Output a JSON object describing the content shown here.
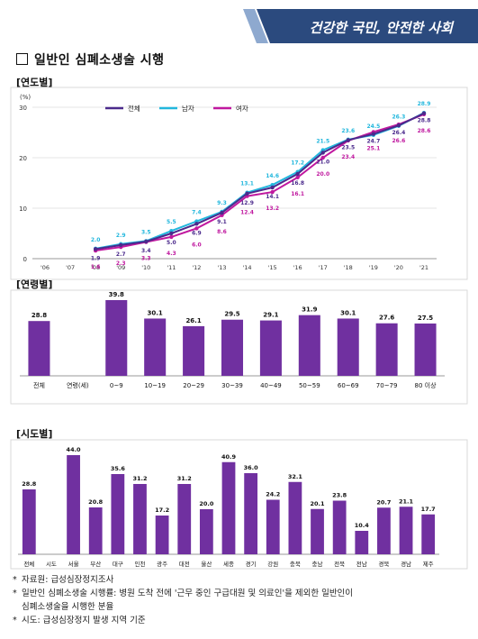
{
  "banner": {
    "slogan": "건강한 국민, 안전한 사회"
  },
  "title": "일반인 심폐소생술 시행",
  "sections": {
    "year": "[연도별]",
    "age": "[연령별]",
    "region": "[시도별]"
  },
  "chart_data": [
    {
      "type": "line",
      "ylabel": "(%)",
      "ylim": [
        0,
        30
      ],
      "yticks": [
        "0",
        "10",
        "20",
        "30"
      ],
      "x": [
        "'06",
        "'07",
        "'08",
        "'09",
        "'10",
        "'11",
        "'12",
        "'13",
        "'14",
        "'15",
        "'16",
        "'17",
        "'18",
        "'19",
        "'20",
        "'21"
      ],
      "legend_position": "top",
      "grid": true,
      "series": [
        {
          "name": "전체",
          "color": "#4b2a8c",
          "values": [
            null,
            null,
            1.9,
            2.7,
            3.4,
            5.0,
            6.9,
            9.1,
            12.9,
            14.1,
            16.8,
            21.0,
            23.5,
            24.7,
            26.4,
            28.8
          ],
          "labels": [
            null,
            null,
            "1.9",
            "2.7",
            "3.4",
            "5.0",
            "6.9",
            "9.1",
            "12.9",
            "14.1",
            "16.8",
            "21.0",
            "23.5",
            "24.7",
            "26.4",
            "28.8"
          ]
        },
        {
          "name": "남자",
          "color": "#22b7dd",
          "values": [
            null,
            null,
            2.0,
            2.9,
            3.5,
            5.5,
            7.4,
            9.3,
            13.1,
            14.6,
            17.2,
            21.5,
            23.6,
            24.5,
            26.3,
            28.9
          ],
          "labels": [
            null,
            null,
            "2.0",
            "2.9",
            "3.5",
            "5.5",
            "7.4",
            "9.3",
            "13.1",
            "14.6",
            "17.2",
            "21.5",
            "23.6",
            "24.5",
            "26.3",
            "28.9"
          ]
        },
        {
          "name": "여자",
          "color": "#c0189f",
          "values": [
            null,
            null,
            1.6,
            2.3,
            3.3,
            4.3,
            6.0,
            8.6,
            12.4,
            13.2,
            16.1,
            20.0,
            23.4,
            25.1,
            26.6,
            28.6
          ],
          "labels": [
            null,
            null,
            "1.6",
            "2.3",
            "3.3",
            "4.3",
            "6.0",
            "8.6",
            "12.4",
            "13.2",
            "16.1",
            "20.0",
            "23.4",
            "25.1",
            "26.6",
            "28.6"
          ]
        }
      ]
    },
    {
      "type": "bar",
      "color": "#7030a0",
      "categories": [
        "전체",
        "연령(세)",
        "0~9",
        "10~19",
        "20~29",
        "30~39",
        "40~49",
        "50~59",
        "60~69",
        "70~79",
        "80 이상"
      ],
      "values": [
        28.8,
        null,
        39.8,
        30.1,
        26.1,
        29.5,
        29.1,
        31.9,
        30.1,
        27.6,
        27.5
      ],
      "labels": [
        "28.8",
        "",
        "39.8",
        "30.1",
        "26.1",
        "29.5",
        "29.1",
        "31.9",
        "30.1",
        "27.6",
        "27.5"
      ],
      "ylim": [
        0,
        45
      ]
    },
    {
      "type": "bar",
      "color": "#7030a0",
      "categories": [
        "전체",
        "시도",
        "서울",
        "부산",
        "대구",
        "인천",
        "광주",
        "대전",
        "울산",
        "세종",
        "경기",
        "강원",
        "충북",
        "충남",
        "전북",
        "전남",
        "경북",
        "경남",
        "제주"
      ],
      "values": [
        28.8,
        null,
        44.0,
        20.8,
        35.6,
        31.2,
        17.2,
        31.2,
        20.0,
        40.9,
        36.0,
        24.2,
        32.1,
        20.1,
        23.8,
        10.4,
        20.7,
        21.1,
        17.7
      ],
      "labels": [
        "28.8",
        "",
        "44.0",
        "20.8",
        "35.6",
        "31.2",
        "17.2",
        "31.2",
        "20.0",
        "40.9",
        "36.0",
        "24.2",
        "32.1",
        "20.1",
        "23.8",
        "10.4",
        "20.7",
        "21.1",
        "17.7"
      ],
      "ylim": [
        0,
        50
      ]
    }
  ],
  "notes": [
    "자료원: 급성심장정지조사",
    "일반인 심폐소생술 시행률: 병원 도착 전에 '근무 중인 구급대원 및 의료인'을 제외한 일반인이",
    "심폐소생술을 시행한 분율",
    "시도: 급성심장정지 발생 지역 기준"
  ]
}
